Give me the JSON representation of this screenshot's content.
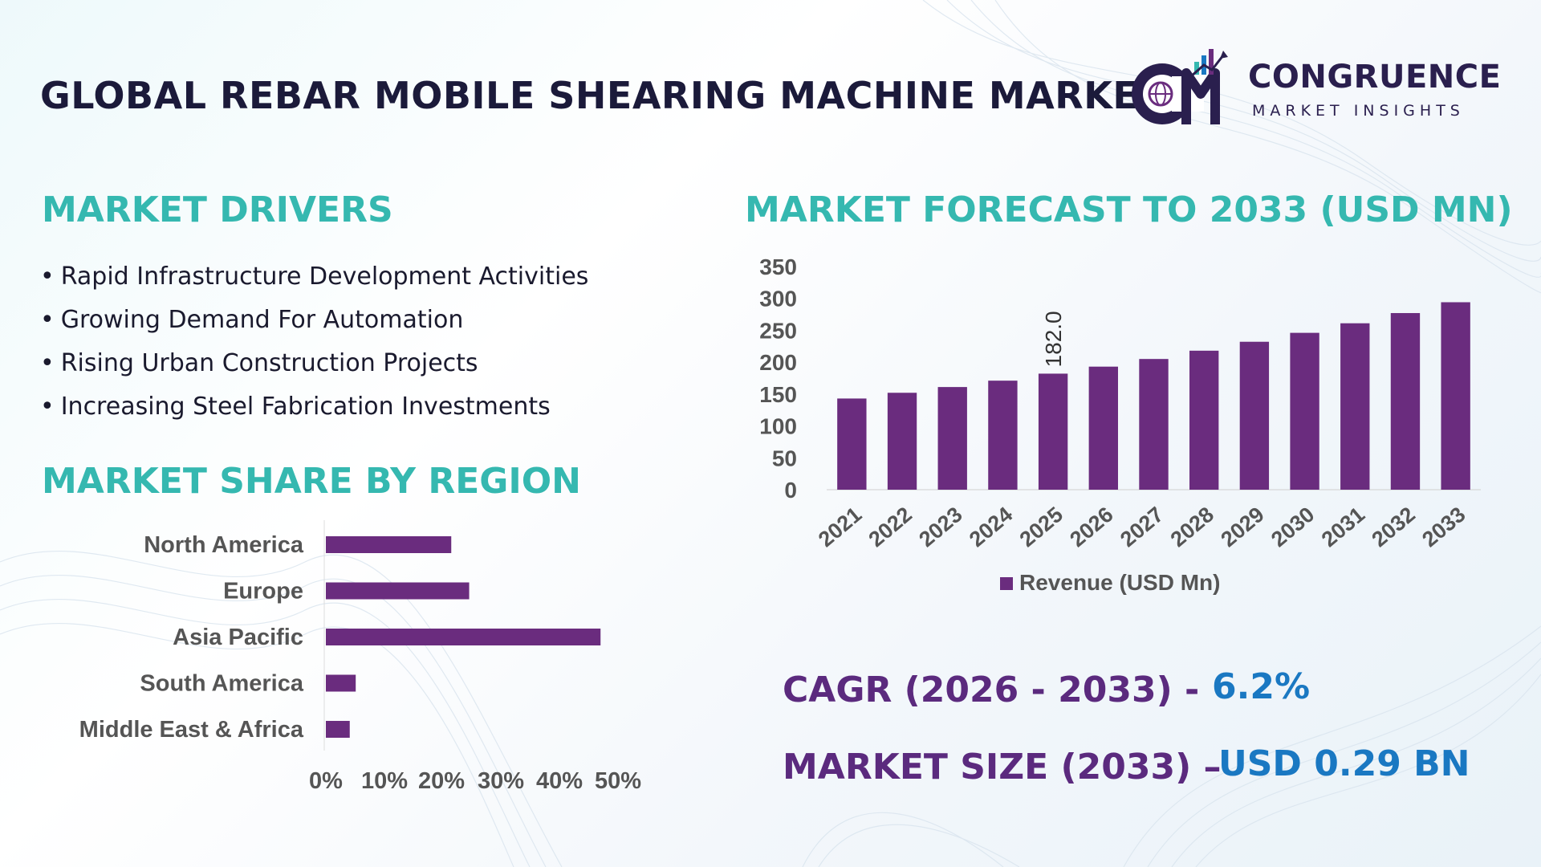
{
  "title": "GLOBAL REBAR MOBILE SHEARING MACHINE MARKET",
  "logo": {
    "name": "CONGRUENCE",
    "tagline": "MARKET INSIGHTS",
    "mark": "CM"
  },
  "drivers": {
    "heading": "MARKET DRIVERS",
    "items": [
      "Rapid Infrastructure Development Activities",
      "Growing Demand For Automation",
      "Rising Urban Construction Projects",
      "Increasing Steel Fabrication Investments"
    ]
  },
  "region": {
    "heading": "MARKET SHARE BY REGION"
  },
  "forecast": {
    "heading": "MARKET FORECAST TO 2033 (USD MN)"
  },
  "stats": {
    "cagr_label": "CAGR (2026 - 2033) -",
    "cagr_value": "6.2%",
    "size_label": "MARKET SIZE (2033) –",
    "size_value": "USD 0.29 BN"
  },
  "colors": {
    "bar": "#6a2c7e",
    "heading": "#35b8b0",
    "stat_label": "#5b2a7e",
    "stat_value": "#1a78c2"
  },
  "chart_data": [
    {
      "type": "bar",
      "orientation": "vertical",
      "categories": [
        "2021",
        "2022",
        "2023",
        "2024",
        "2025",
        "2026",
        "2027",
        "2028",
        "2029",
        "2030",
        "2031",
        "2032",
        "2033"
      ],
      "series": [
        {
          "name": "Revenue (USD Mn)",
          "values": [
            143,
            152,
            161,
            171,
            182,
            193,
            205,
            218,
            232,
            246,
            261,
            277,
            294
          ]
        }
      ],
      "data_labels": [
        {
          "category": "2025",
          "text": "182.0"
        }
      ],
      "ylim": [
        0,
        350
      ],
      "yticks": [
        0,
        50,
        100,
        150,
        200,
        250,
        300,
        350
      ],
      "legend": "bottom",
      "grid": false
    },
    {
      "type": "bar",
      "orientation": "horizontal",
      "categories": [
        "North America",
        "Europe",
        "Asia Pacific",
        "South America",
        "Middle East & Africa"
      ],
      "values": [
        21,
        24,
        46,
        5,
        4
      ],
      "unit": "%",
      "xlim": [
        0,
        50
      ],
      "xticks": [
        "0%",
        "10%",
        "20%",
        "30%",
        "40%",
        "50%"
      ],
      "grid": false
    }
  ]
}
